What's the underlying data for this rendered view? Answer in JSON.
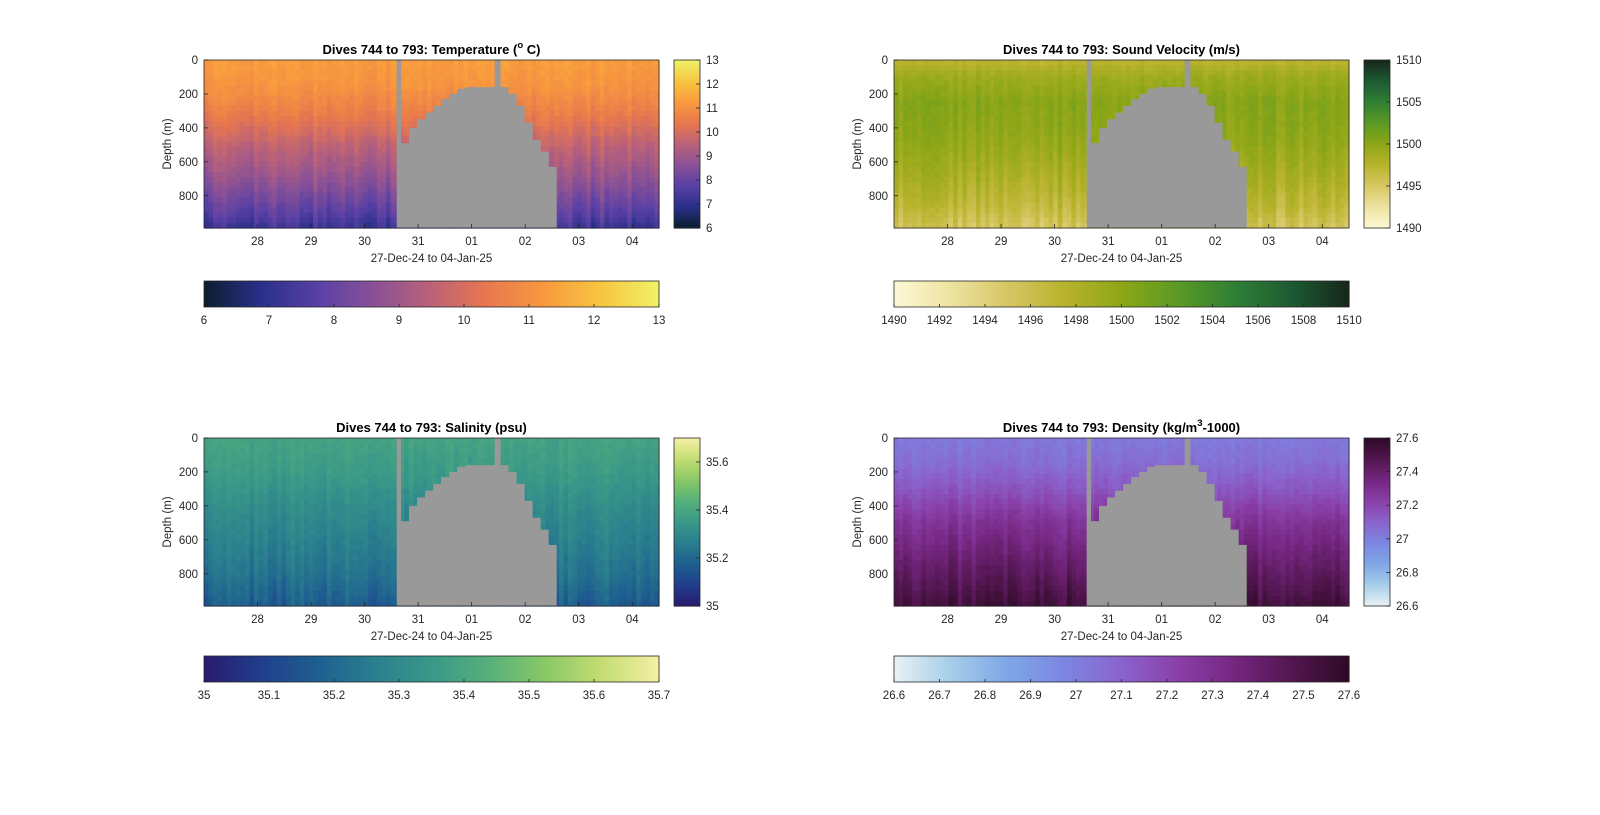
{
  "chart_data": [
    {
      "type": "heatmap",
      "title_main": "Dives 744 to 793: Temperature (",
      "title_sup": "o",
      "title_end": " C)",
      "xlabel": "27-Dec-24 to 04-Jan-25",
      "ylabel": "Depth (m)",
      "xlim": [
        0,
        8.5
      ],
      "ylim": [
        990,
        0
      ],
      "x_ticks": [
        {
          "value": 1,
          "label": "28"
        },
        {
          "value": 2,
          "label": "29"
        },
        {
          "value": 3,
          "label": "30"
        },
        {
          "value": 4,
          "label": "31"
        },
        {
          "value": 5,
          "label": "01"
        },
        {
          "value": 6,
          "label": "02"
        },
        {
          "value": 7,
          "label": "03"
        },
        {
          "value": 8,
          "label": "04"
        }
      ],
      "y_ticks": [
        {
          "value": 0,
          "label": "0"
        },
        {
          "value": 200,
          "label": "200"
        },
        {
          "value": 400,
          "label": "400"
        },
        {
          "value": 600,
          "label": "600"
        },
        {
          "value": 800,
          "label": "800"
        }
      ],
      "clim": [
        6,
        13
      ],
      "colormap": [
        "#0a1e2e",
        "#2a2f8a",
        "#5940a5",
        "#8a5196",
        "#bb6278",
        "#e8784d",
        "#f89a3e",
        "#f6c640",
        "#f0f26a"
      ],
      "depth_stops": [
        0,
        150,
        300,
        500,
        700,
        900,
        990
      ],
      "profile_values": [
        11.3,
        11.1,
        10.6,
        9.6,
        8.8,
        7.8,
        7.2
      ],
      "colorbar_side_ticks": [
        {
          "value": 6,
          "label": "6"
        },
        {
          "value": 7,
          "label": "7"
        },
        {
          "value": 8,
          "label": "8"
        },
        {
          "value": 9,
          "label": "9"
        },
        {
          "value": 10,
          "label": "10"
        },
        {
          "value": 11,
          "label": "11"
        },
        {
          "value": 12,
          "label": "12"
        },
        {
          "value": 13,
          "label": "13"
        }
      ],
      "colorbar_bottom_ticks": [
        {
          "value": 6,
          "label": "6"
        },
        {
          "value": 7,
          "label": "7"
        },
        {
          "value": 8,
          "label": "8"
        },
        {
          "value": 9,
          "label": "9"
        },
        {
          "value": 10,
          "label": "10"
        },
        {
          "value": 11,
          "label": "11"
        },
        {
          "value": 12,
          "label": "12"
        },
        {
          "value": 13,
          "label": "13"
        }
      ],
      "no_data_color": "#999999"
    },
    {
      "type": "heatmap",
      "title_main": "Dives 744 to 793: Sound Velocity (m/s)",
      "title_sup": "",
      "title_end": "",
      "xlabel": "27-Dec-24 to 04-Jan-25",
      "ylabel": "Depth (m)",
      "xlim": [
        0,
        8.5
      ],
      "ylim": [
        990,
        0
      ],
      "x_ticks": [
        {
          "value": 1,
          "label": "28"
        },
        {
          "value": 2,
          "label": "29"
        },
        {
          "value": 3,
          "label": "30"
        },
        {
          "value": 4,
          "label": "31"
        },
        {
          "value": 5,
          "label": "01"
        },
        {
          "value": 6,
          "label": "02"
        },
        {
          "value": 7,
          "label": "03"
        },
        {
          "value": 8,
          "label": "04"
        }
      ],
      "y_ticks": [
        {
          "value": 0,
          "label": "0"
        },
        {
          "value": 200,
          "label": "200"
        },
        {
          "value": 400,
          "label": "400"
        },
        {
          "value": 600,
          "label": "600"
        },
        {
          "value": 800,
          "label": "800"
        }
      ],
      "clim": [
        1490,
        1510
      ],
      "colormap": [
        "#fdf8d6",
        "#ede3a0",
        "#d6c663",
        "#b8b32c",
        "#8da617",
        "#5a9a24",
        "#2f7e34",
        "#1d5a32",
        "#16261a"
      ],
      "depth_stops": [
        0,
        100,
        250,
        450,
        650,
        850,
        990
      ],
      "profile_values": [
        1497.2,
        1499.0,
        1500.3,
        1499.8,
        1498.6,
        1497.0,
        1495.3
      ],
      "colorbar_side_ticks": [
        {
          "value": 1490,
          "label": "1490"
        },
        {
          "value": 1495,
          "label": "1495"
        },
        {
          "value": 1500,
          "label": "1500"
        },
        {
          "value": 1505,
          "label": "1505"
        },
        {
          "value": 1510,
          "label": "1510"
        }
      ],
      "colorbar_bottom_ticks": [
        {
          "value": 1490,
          "label": "1490"
        },
        {
          "value": 1492,
          "label": "1492"
        },
        {
          "value": 1494,
          "label": "1494"
        },
        {
          "value": 1496,
          "label": "1496"
        },
        {
          "value": 1498,
          "label": "1498"
        },
        {
          "value": 1500,
          "label": "1500"
        },
        {
          "value": 1502,
          "label": "1502"
        },
        {
          "value": 1504,
          "label": "1504"
        },
        {
          "value": 1506,
          "label": "1506"
        },
        {
          "value": 1508,
          "label": "1508"
        },
        {
          "value": 1510,
          "label": "1510"
        }
      ],
      "no_data_color": "#999999"
    },
    {
      "type": "heatmap",
      "title_main": "Dives 744 to 793: Salinity (psu)",
      "title_sup": "",
      "title_end": "",
      "xlabel": "27-Dec-24 to 04-Jan-25",
      "ylabel": "Depth (m)",
      "xlim": [
        0,
        8.5
      ],
      "ylim": [
        990,
        0
      ],
      "x_ticks": [
        {
          "value": 1,
          "label": "28"
        },
        {
          "value": 2,
          "label": "29"
        },
        {
          "value": 3,
          "label": "30"
        },
        {
          "value": 4,
          "label": "31"
        },
        {
          "value": 5,
          "label": "01"
        },
        {
          "value": 6,
          "label": "02"
        },
        {
          "value": 7,
          "label": "03"
        },
        {
          "value": 8,
          "label": "04"
        }
      ],
      "y_ticks": [
        {
          "value": 0,
          "label": "0"
        },
        {
          "value": 200,
          "label": "200"
        },
        {
          "value": 400,
          "label": "400"
        },
        {
          "value": 600,
          "label": "600"
        },
        {
          "value": 800,
          "label": "800"
        }
      ],
      "clim": [
        35,
        35.7
      ],
      "colormap": [
        "#2a1a6e",
        "#203e8c",
        "#1e5f8f",
        "#2a7f8e",
        "#3a9888",
        "#55b07a",
        "#89c867",
        "#c4dd72",
        "#f5f0a6"
      ],
      "depth_stops": [
        0,
        200,
        400,
        600,
        800,
        990
      ],
      "profile_values": [
        35.39,
        35.36,
        35.31,
        35.27,
        35.23,
        35.17
      ],
      "colorbar_side_ticks": [
        {
          "value": 35,
          "label": "35"
        },
        {
          "value": 35.2,
          "label": "35.2"
        },
        {
          "value": 35.4,
          "label": "35.4"
        },
        {
          "value": 35.6,
          "label": "35.6"
        }
      ],
      "colorbar_bottom_ticks": [
        {
          "value": 35,
          "label": "35"
        },
        {
          "value": 35.1,
          "label": "35.1"
        },
        {
          "value": 35.2,
          "label": "35.2"
        },
        {
          "value": 35.3,
          "label": "35.3"
        },
        {
          "value": 35.4,
          "label": "35.4"
        },
        {
          "value": 35.5,
          "label": "35.5"
        },
        {
          "value": 35.6,
          "label": "35.6"
        },
        {
          "value": 35.7,
          "label": "35.7"
        }
      ],
      "no_data_color": "#999999"
    },
    {
      "type": "heatmap",
      "title_main": "Dives 744 to 793: Density (kg/m",
      "title_sup": "3",
      "title_end": "-1000)",
      "xlabel": "27-Dec-24 to 04-Jan-25",
      "ylabel": "Depth (m)",
      "xlim": [
        0,
        8.5
      ],
      "ylim": [
        990,
        0
      ],
      "x_ticks": [
        {
          "value": 1,
          "label": "28"
        },
        {
          "value": 2,
          "label": "29"
        },
        {
          "value": 3,
          "label": "30"
        },
        {
          "value": 4,
          "label": "31"
        },
        {
          "value": 5,
          "label": "01"
        },
        {
          "value": 6,
          "label": "02"
        },
        {
          "value": 7,
          "label": "03"
        },
        {
          "value": 8,
          "label": "04"
        }
      ],
      "y_ticks": [
        {
          "value": 0,
          "label": "0"
        },
        {
          "value": 200,
          "label": "200"
        },
        {
          "value": 400,
          "label": "400"
        },
        {
          "value": 600,
          "label": "600"
        },
        {
          "value": 800,
          "label": "800"
        }
      ],
      "clim": [
        26.6,
        27.6
      ],
      "colormap": [
        "#e8f2f3",
        "#a6cde9",
        "#7fa6e6",
        "#7c86e2",
        "#8a63cc",
        "#8a3fa8",
        "#74267f",
        "#52164f",
        "#2e0a26"
      ],
      "depth_stops": [
        0,
        150,
        300,
        500,
        700,
        900,
        990
      ],
      "profile_values": [
        27.02,
        27.06,
        27.14,
        27.28,
        27.38,
        27.48,
        27.53
      ],
      "colorbar_side_ticks": [
        {
          "value": 26.6,
          "label": "26.6"
        },
        {
          "value": 26.8,
          "label": "26.8"
        },
        {
          "value": 27,
          "label": "27"
        },
        {
          "value": 27.2,
          "label": "27.2"
        },
        {
          "value": 27.4,
          "label": "27.4"
        },
        {
          "value": 27.6,
          "label": "27.6"
        }
      ],
      "colorbar_bottom_ticks": [
        {
          "value": 26.6,
          "label": "26.6"
        },
        {
          "value": 26.7,
          "label": "26.7"
        },
        {
          "value": 26.8,
          "label": "26.8"
        },
        {
          "value": 26.9,
          "label": "26.9"
        },
        {
          "value": 27,
          "label": "27"
        },
        {
          "value": 27.1,
          "label": "27.1"
        },
        {
          "value": 27.2,
          "label": "27.2"
        },
        {
          "value": 27.3,
          "label": "27.3"
        },
        {
          "value": 27.4,
          "label": "27.4"
        },
        {
          "value": 27.5,
          "label": "27.5"
        },
        {
          "value": 27.6,
          "label": "27.6"
        }
      ],
      "no_data_color": "#999999"
    }
  ]
}
